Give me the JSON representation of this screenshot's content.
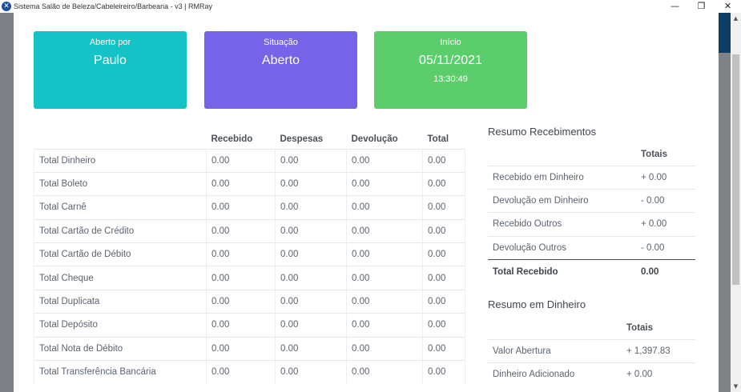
{
  "window": {
    "title": "Sistema Salão de Beleza/Cabeleireiro/Barbearia - v3 | RMRay",
    "minimize": "—",
    "maximize": "❐",
    "close": "✕"
  },
  "cards": {
    "aberto_por": {
      "label": "Aberto por",
      "value": "Paulo",
      "color": "#14c3c6"
    },
    "situacao": {
      "label": "Situação",
      "value": "Aberto",
      "color": "#7563e8"
    },
    "inicio": {
      "label": "Início",
      "value": "05/11/2021",
      "sub": "13:30:49",
      "color": "#5bce6b"
    }
  },
  "totals_table": {
    "headers": [
      "",
      "Recebido",
      "Despesas",
      "Devolução",
      "Total"
    ],
    "rows": [
      [
        "Total Dinheiro",
        "0.00",
        "0.00",
        "0.00",
        "0.00"
      ],
      [
        "Total Boleto",
        "0.00",
        "0.00",
        "0.00",
        "0.00"
      ],
      [
        "Total Carnê",
        "0.00",
        "0.00",
        "0.00",
        "0.00"
      ],
      [
        "Total Cartão de Crédito",
        "0.00",
        "0.00",
        "0.00",
        "0.00"
      ],
      [
        "Total Cartão de Débito",
        "0.00",
        "0.00",
        "0.00",
        "0.00"
      ],
      [
        "Total Cheque",
        "0.00",
        "0.00",
        "0.00",
        "0.00"
      ],
      [
        "Total Duplicata",
        "0.00",
        "0.00",
        "0.00",
        "0.00"
      ],
      [
        "Total Depósito",
        "0.00",
        "0.00",
        "0.00",
        "0.00"
      ],
      [
        "Total Nota de Débito",
        "0.00",
        "0.00",
        "0.00",
        "0.00"
      ],
      [
        "Total Transferência Bancária",
        "0.00",
        "0.00",
        "0.00",
        "0.00"
      ]
    ]
  },
  "resumo_recebimentos": {
    "title": "Resumo Recebimentos",
    "header": "Totais",
    "rows": [
      [
        "Recebido em Dinheiro",
        "+ 0.00"
      ],
      [
        "Devolução em Dinheiro",
        "- 0.00"
      ],
      [
        "Recebido Outros",
        "+ 0.00"
      ],
      [
        "Devolução Outros",
        "- 0.00"
      ]
    ],
    "total_label": "Total Recebido",
    "total_value": "0.00"
  },
  "resumo_dinheiro": {
    "title": "Resumo em Dinheiro",
    "header": "Totais",
    "rows": [
      [
        "Valor Abertura",
        "+ 1,397.83"
      ],
      [
        "Dinheiro Adicionado",
        "+ 0.00"
      ]
    ]
  }
}
